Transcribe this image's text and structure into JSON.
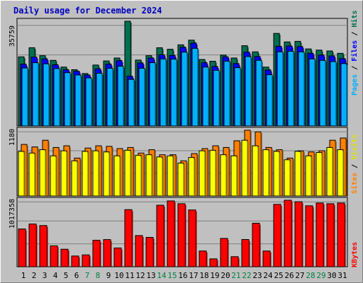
{
  "chart_data": [
    {
      "type": "bar",
      "title": "Daily usage for December 2024",
      "categories": [
        "1",
        "2",
        "3",
        "4",
        "5",
        "6",
        "7",
        "8",
        "9",
        "10",
        "11",
        "12",
        "13",
        "14",
        "15",
        "16",
        "17",
        "18",
        "19",
        "20",
        "21",
        "22",
        "23",
        "24",
        "25",
        "26",
        "27",
        "28",
        "29",
        "30",
        "31"
      ],
      "weekend_days": [
        "7",
        "8",
        "14",
        "15",
        "21",
        "22",
        "28",
        "29"
      ],
      "y_max_label": "35759",
      "ylabel_parts": [
        "Pages",
        "/",
        "Files",
        "/",
        "Hits"
      ],
      "series": [
        {
          "name": "Hits",
          "color": "#006f4f",
          "values": [
            23600,
            26700,
            24000,
            22400,
            20100,
            19200,
            17900,
            20800,
            22200,
            23200,
            35759,
            22500,
            24000,
            26700,
            26200,
            27700,
            29300,
            22700,
            22100,
            24200,
            23200,
            27400,
            25300,
            20100,
            31600,
            28700,
            28900,
            26300,
            25900,
            25600,
            24800
          ]
        },
        {
          "name": "Files",
          "color": "#0000ff",
          "values": [
            21100,
            23500,
            22900,
            20900,
            19200,
            18700,
            17400,
            19500,
            21100,
            22300,
            17000,
            21500,
            23200,
            24300,
            24100,
            26900,
            28300,
            21600,
            20300,
            23600,
            21300,
            25200,
            23700,
            19100,
            27200,
            27300,
            27100,
            24800,
            24200,
            23900,
            23000
          ]
        },
        {
          "name": "Pages",
          "color": "#00b0ff",
          "values": [
            19800,
            21600,
            21200,
            19600,
            18200,
            17400,
            16400,
            18000,
            19700,
            20400,
            15900,
            19700,
            21600,
            22900,
            22800,
            25200,
            26500,
            20100,
            19000,
            22100,
            19900,
            23700,
            22400,
            17500,
            25300,
            25500,
            25300,
            22900,
            22400,
            22000,
            21300
          ]
        }
      ]
    },
    {
      "type": "bar",
      "y_max_label": "1180",
      "ylabel_parts": [
        "Sites",
        "/",
        "Visits"
      ],
      "series": [
        {
          "name": "Visits",
          "color": "#ff8000",
          "values": [
            925,
            880,
            1000,
            870,
            900,
            680,
            860,
            900,
            890,
            850,
            870,
            770,
            830,
            740,
            740,
            630,
            760,
            850,
            900,
            870,
            990,
            1180,
            1150,
            870,
            830,
            680,
            810,
            790,
            810,
            1000,
            1040
          ]
        },
        {
          "name": "Sites",
          "color": "#ffff00",
          "values": [
            800,
            770,
            830,
            720,
            810,
            630,
            800,
            810,
            790,
            720,
            820,
            730,
            740,
            700,
            720,
            590,
            690,
            810,
            820,
            740,
            720,
            1000,
            900,
            830,
            800,
            650,
            800,
            720,
            780,
            870,
            830
          ]
        }
      ]
    },
    {
      "type": "bar",
      "y_max_label": "1017358",
      "ylabel_parts": [
        "KBytes"
      ],
      "series": [
        {
          "name": "KBytes",
          "color": "#ff0000",
          "values": [
            545000,
            617000,
            595000,
            302000,
            253000,
            155000,
            171000,
            382000,
            392000,
            271000,
            824000,
            450000,
            424000,
            888000,
            950000,
            910000,
            820000,
            227000,
            114000,
            409000,
            145000,
            393000,
            628000,
            227000,
            900000,
            960000,
            938000,
            880000,
            920000,
            910000,
            920000
          ]
        }
      ]
    }
  ]
}
